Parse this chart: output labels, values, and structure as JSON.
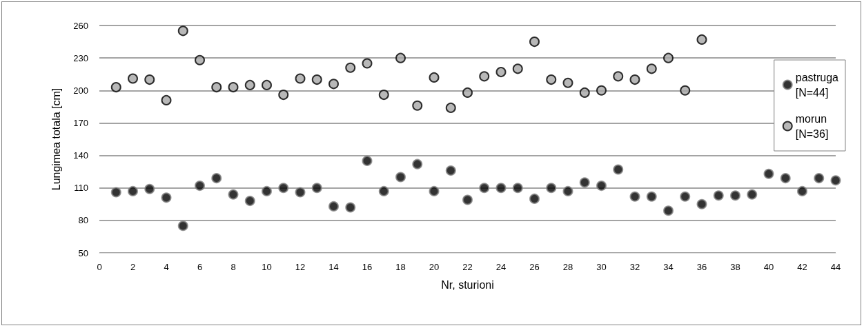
{
  "chart_data": {
    "type": "scatter",
    "xlabel": "Nr, sturioni",
    "ylabel": "Lungimea totala [cm]",
    "xlim": [
      0,
      44
    ],
    "xticks": [
      0,
      2,
      4,
      6,
      8,
      10,
      12,
      14,
      16,
      18,
      20,
      22,
      24,
      26,
      28,
      30,
      32,
      34,
      36,
      38,
      40,
      42,
      44
    ],
    "ylim": [
      50,
      260
    ],
    "yticks": [
      50,
      80,
      110,
      140,
      170,
      200,
      230,
      260
    ],
    "grid": "y",
    "legend": "right",
    "marker": "circle",
    "series": [
      {
        "name": "pastruga\n[N=44]",
        "color": "#000000",
        "x": [
          1,
          2,
          3,
          4,
          5,
          6,
          7,
          8,
          9,
          10,
          11,
          12,
          13,
          14,
          15,
          16,
          17,
          18,
          19,
          20,
          21,
          22,
          23,
          24,
          25,
          26,
          27,
          28,
          29,
          30,
          31,
          32,
          33,
          34,
          35,
          36,
          37,
          38,
          39,
          40,
          41,
          42,
          43,
          44
        ],
        "values": [
          106,
          107,
          109,
          101,
          75,
          112,
          119,
          104,
          98,
          107,
          110,
          106,
          110,
          93,
          92,
          135,
          107,
          120,
          132,
          107,
          126,
          99,
          110,
          110,
          110,
          100,
          110,
          107,
          115,
          112,
          127,
          102,
          102,
          89,
          102,
          95,
          103,
          103,
          104,
          123,
          119,
          107,
          119,
          117
        ]
      },
      {
        "name": "morun\n[N=36]",
        "color": "#a6a6a6",
        "x": [
          1,
          2,
          3,
          4,
          5,
          6,
          7,
          8,
          9,
          10,
          11,
          12,
          13,
          14,
          15,
          16,
          17,
          18,
          19,
          20,
          21,
          22,
          23,
          24,
          25,
          26,
          27,
          28,
          29,
          30,
          31,
          32,
          33,
          34,
          35,
          36
        ],
        "values": [
          203,
          211,
          210,
          191,
          255,
          228,
          203,
          203,
          205,
          205,
          196,
          211,
          210,
          206,
          221,
          225,
          196,
          230,
          186,
          212,
          184,
          198,
          213,
          217,
          220,
          245,
          210,
          207,
          198,
          200,
          213,
          210,
          220,
          230,
          200,
          247
        ]
      }
    ]
  }
}
